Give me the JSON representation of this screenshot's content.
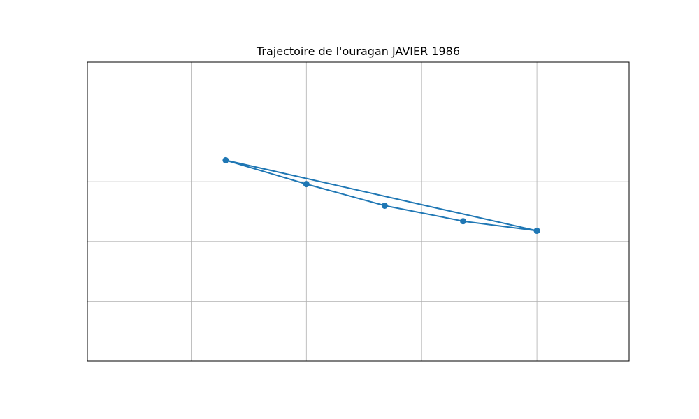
{
  "chart_data": {
    "type": "line",
    "title": "Trajectoire de l'ouragan JAVIER 1986",
    "xlabel": "",
    "ylabel": "",
    "xlim": [
      -118.0,
      -94.5
    ],
    "ylim": [
      12.0,
      37.0
    ],
    "x_gridlines": [
      -113.5,
      -108.5,
      -103.5,
      -98.5
    ],
    "y_gridlines": [
      17.0,
      22.0,
      27.0,
      32.0,
      36.1
    ],
    "grid": true,
    "legend": "none",
    "series": [
      {
        "color": "#1f77b4",
        "points": [
          {
            "lon": -98.5,
            "lat": 22.9
          },
          {
            "lon": -101.7,
            "lat": 23.7
          },
          {
            "lon": -105.1,
            "lat": 25.0
          },
          {
            "lon": -108.5,
            "lat": 26.8
          },
          {
            "lon": -112.0,
            "lat": 28.8
          },
          {
            "lon": -98.5,
            "lat": 22.9
          }
        ]
      }
    ]
  }
}
